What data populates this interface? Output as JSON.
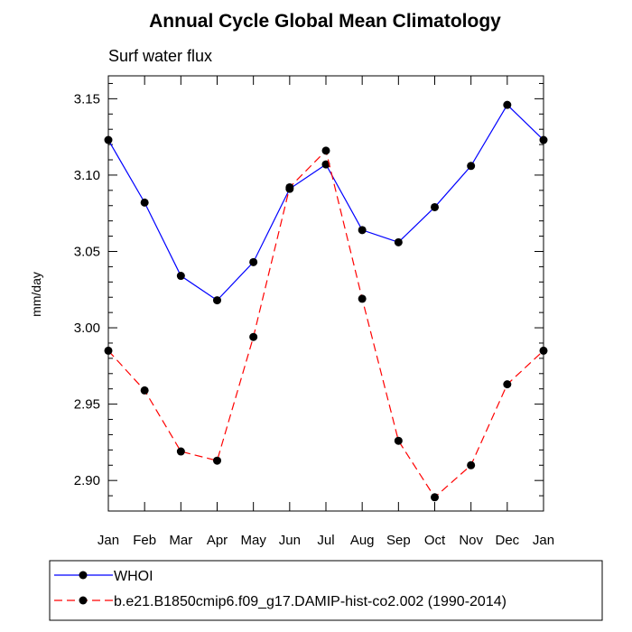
{
  "chart_data": {
    "type": "line",
    "title": "Annual Cycle Global Mean Climatology",
    "subtitle": "Surf water flux",
    "ylabel": "mm/day",
    "xlabel": "",
    "categories": [
      "Jan",
      "Feb",
      "Mar",
      "Apr",
      "May",
      "Jun",
      "Jul",
      "Aug",
      "Sep",
      "Oct",
      "Nov",
      "Dec",
      "Jan"
    ],
    "ylim": [
      2.88,
      3.165
    ],
    "yticks": [
      2.9,
      2.95,
      3.0,
      3.05,
      3.1,
      3.15
    ],
    "ytick_labels": [
      "2.90",
      "2.95",
      "3.00",
      "3.05",
      "3.10",
      "3.15"
    ],
    "grid": false,
    "legend_position": "bottom",
    "series": [
      {
        "name": "WHOI",
        "color": "#0000ff",
        "dash": "solid",
        "values": [
          3.123,
          3.082,
          3.034,
          3.018,
          3.043,
          3.091,
          3.107,
          3.064,
          3.056,
          3.079,
          3.106,
          3.146,
          3.123
        ]
      },
      {
        "name": "b.e21.B1850cmip6.f09_g17.DAMIP-hist-co2.002 (1990-2014)",
        "color": "#ff0000",
        "dash": "dashed",
        "values": [
          2.985,
          2.959,
          2.919,
          2.913,
          2.994,
          3.092,
          3.116,
          3.019,
          2.926,
          2.889,
          2.91,
          2.963,
          2.985
        ]
      }
    ]
  }
}
